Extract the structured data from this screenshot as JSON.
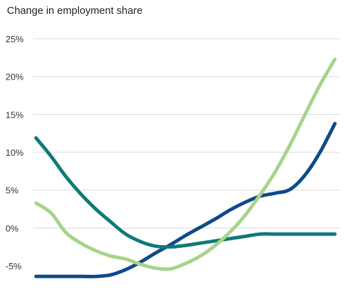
{
  "chart_data": {
    "type": "line",
    "title": "Change in employment share",
    "xlabel": "",
    "ylabel": "",
    "x": [
      0,
      5,
      10,
      15,
      20,
      25,
      30,
      35,
      40,
      45,
      50,
      55,
      60,
      65,
      70,
      75,
      80,
      85,
      90,
      95,
      100
    ],
    "ylim": [
      -5,
      25
    ],
    "yticks": [
      -5,
      0,
      5,
      10,
      15,
      20,
      25
    ],
    "ytick_labels": [
      "-5%",
      "0%",
      "5%",
      "10%",
      "15%",
      "20%",
      "25%"
    ],
    "grid": true,
    "legend": "none",
    "series": [
      {
        "color": "#0d4a8a",
        "values": [
          -6.4,
          -6.4,
          -6.4,
          -6.4,
          -6.4,
          -6.2,
          -5.5,
          -4.5,
          -3.3,
          -2.2,
          -1.0,
          0.1,
          1.2,
          2.4,
          3.4,
          4.2,
          4.6,
          5.1,
          7.0,
          10.0,
          13.8
        ]
      },
      {
        "color": "#0f7a78",
        "values": [
          11.9,
          9.5,
          6.8,
          4.5,
          2.5,
          0.8,
          -0.8,
          -1.8,
          -2.4,
          -2.5,
          -2.3,
          -2.0,
          -1.7,
          -1.4,
          -1.1,
          -0.8,
          -0.8,
          -0.8,
          -0.8,
          -0.8,
          -0.8
        ]
      },
      {
        "color": "#a8d38a",
        "values": [
          3.3,
          2.0,
          -0.6,
          -2.0,
          -3.0,
          -3.7,
          -4.1,
          -4.8,
          -5.3,
          -5.4,
          -4.7,
          -3.7,
          -2.3,
          -0.5,
          1.7,
          4.4,
          7.4,
          11.0,
          15.0,
          18.9,
          22.3
        ]
      }
    ]
  }
}
